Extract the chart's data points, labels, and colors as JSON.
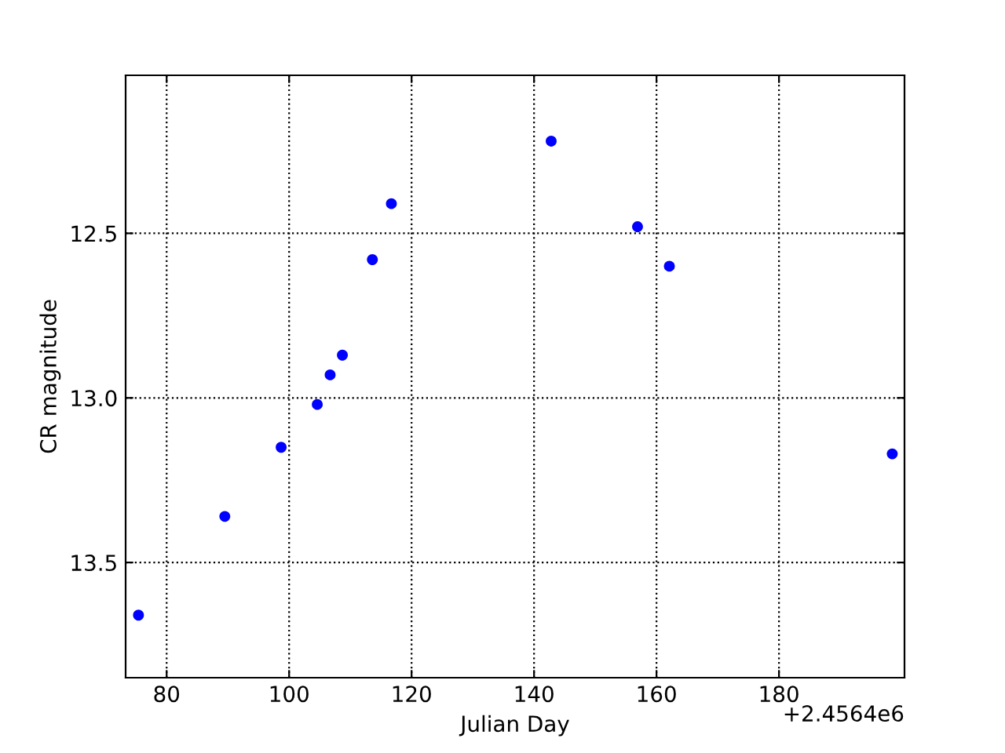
{
  "chart_data": {
    "type": "scatter",
    "xlabel": "Julian Day",
    "ylabel": "CR magnitude",
    "x": [
      75.4,
      89.5,
      98.7,
      104.6,
      106.7,
      108.7,
      113.6,
      116.7,
      142.8,
      156.9,
      162.1,
      198.5
    ],
    "series": [
      {
        "color": "#0000ff",
        "values": [
          13.66,
          13.36,
          13.15,
          13.02,
          12.93,
          12.87,
          12.58,
          12.41,
          12.22,
          12.48,
          12.6,
          13.17
        ]
      }
    ],
    "marker": "circle",
    "grid": true,
    "xlim": [
      73.3,
      200.5
    ],
    "xticks": [
      80,
      100,
      120,
      140,
      160,
      180
    ],
    "ylim": [
      13.85,
      12.02
    ],
    "yticks": [
      12.5,
      {
        "value": 13,
        "label": "13.0"
      },
      13.5
    ],
    "annotations": [
      "+2.4564e6"
    ]
  }
}
